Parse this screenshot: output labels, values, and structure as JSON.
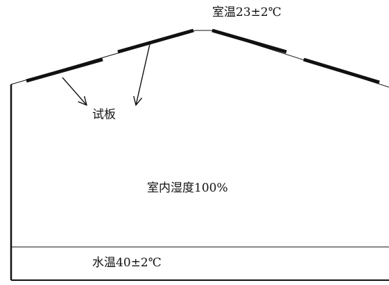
{
  "labels": {
    "room_temperature": "室温23±2℃",
    "test_panel": "试板",
    "room_humidity": "室内湿度100%",
    "water_temperature": "水温40±2℃"
  },
  "colors": {
    "line": "#111111",
    "background": "#ffffff"
  }
}
